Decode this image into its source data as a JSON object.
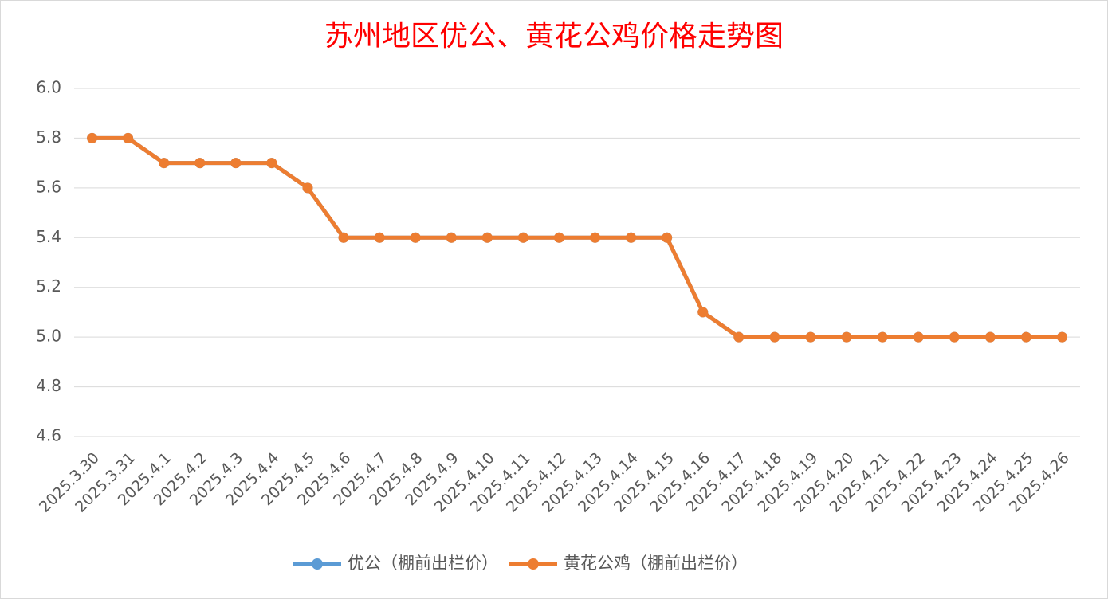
{
  "chart_data": {
    "type": "line",
    "title": "苏州地区优公、黄花公鸡价格走势图",
    "categories": [
      "2025.3.30",
      "2025.3.31",
      "2025.4.1",
      "2025.4.2",
      "2025.4.3",
      "2025.4.4",
      "2025.4.5",
      "2025.4.6",
      "2025.4.7",
      "2025.4.8",
      "2025.4.9",
      "2025.4.10",
      "2025.4.11",
      "2025.4.12",
      "2025.4.13",
      "2025.4.14",
      "2025.4.15",
      "2025.4.16",
      "2025.4.17",
      "2025.4.18",
      "2025.4.19",
      "2025.4.20",
      "2025.4.21",
      "2025.4.22",
      "2025.4.23",
      "2025.4.24",
      "2025.4.25",
      "2025.4.26"
    ],
    "series": [
      {
        "name": "优公（棚前出栏价）",
        "color": "#5b9bd5",
        "values": [
          5.8,
          5.8,
          5.7,
          5.7,
          5.7,
          5.7,
          5.6,
          5.4,
          5.4,
          5.4,
          5.4,
          5.4,
          5.4,
          5.4,
          5.4,
          5.4,
          5.4,
          5.1,
          5.0,
          5.0,
          5.0,
          5.0,
          5.0,
          5.0,
          5.0,
          5.0,
          5.0,
          5.0
        ]
      },
      {
        "name": "黄花公鸡（棚前出栏价）",
        "color": "#ed7d31",
        "values": [
          5.8,
          5.8,
          5.7,
          5.7,
          5.7,
          5.7,
          5.6,
          5.4,
          5.4,
          5.4,
          5.4,
          5.4,
          5.4,
          5.4,
          5.4,
          5.4,
          5.4,
          5.1,
          5.0,
          5.0,
          5.0,
          5.0,
          5.0,
          5.0,
          5.0,
          5.0,
          5.0,
          5.0
        ]
      }
    ],
    "ylim": [
      4.6,
      6.0
    ],
    "yticks": [
      4.6,
      4.8,
      {
        "value": 5,
        "label": "5.0"
      },
      5.2,
      5.4,
      5.6,
      5.8,
      {
        "value": 6,
        "label": "6.0"
      }
    ],
    "grid": true,
    "legend": "bottom"
  }
}
